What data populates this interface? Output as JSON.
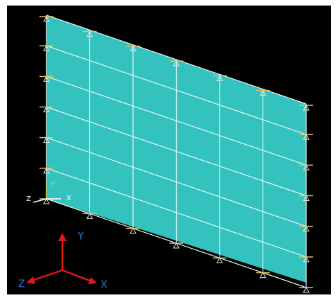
{
  "triad": {
    "x": "X",
    "y": "Y",
    "z": "Z"
  },
  "origin_axes": {
    "x": "X",
    "y": "Y",
    "z": "Z"
  }
}
